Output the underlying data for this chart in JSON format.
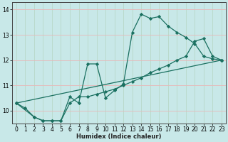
{
  "xlabel": "Humidex (Indice chaleur)",
  "bg_color": "#c8e8e8",
  "grid_h_color": "#e8b8b8",
  "grid_v_color": "#b8d8c8",
  "line_color": "#1a7060",
  "xlim": [
    -0.5,
    23.5
  ],
  "ylim": [
    9.5,
    14.3
  ],
  "xticks": [
    0,
    1,
    2,
    3,
    4,
    5,
    6,
    7,
    8,
    9,
    10,
    11,
    12,
    13,
    14,
    15,
    16,
    17,
    18,
    19,
    20,
    21,
    22,
    23
  ],
  "yticks": [
    10,
    11,
    12,
    13,
    14
  ],
  "line1_x": [
    0,
    1,
    2,
    3,
    4,
    5,
    6,
    7,
    8,
    9,
    10,
    11,
    12,
    13,
    14,
    15,
    16,
    17,
    18,
    19,
    20,
    21,
    22,
    23
  ],
  "line1_y": [
    10.3,
    10.1,
    9.75,
    9.6,
    9.6,
    9.6,
    10.55,
    10.3,
    11.85,
    11.85,
    10.5,
    10.8,
    11.05,
    13.1,
    13.82,
    13.65,
    13.72,
    13.35,
    13.1,
    12.9,
    12.65,
    12.15,
    12.05,
    12.0
  ],
  "line2_x": [
    0,
    2,
    3,
    4,
    5,
    6,
    7,
    8,
    9,
    10,
    11,
    12,
    13,
    14,
    15,
    16,
    17,
    18,
    19,
    20,
    21,
    22,
    23
  ],
  "line2_y": [
    10.3,
    9.75,
    9.6,
    9.6,
    9.6,
    10.3,
    10.55,
    10.55,
    10.65,
    10.75,
    10.85,
    11.0,
    11.15,
    11.3,
    11.5,
    11.65,
    11.8,
    12.0,
    12.15,
    12.75,
    12.85,
    12.15,
    12.0
  ],
  "line3_x": [
    0,
    23
  ],
  "line3_y": [
    10.3,
    12.0
  ]
}
